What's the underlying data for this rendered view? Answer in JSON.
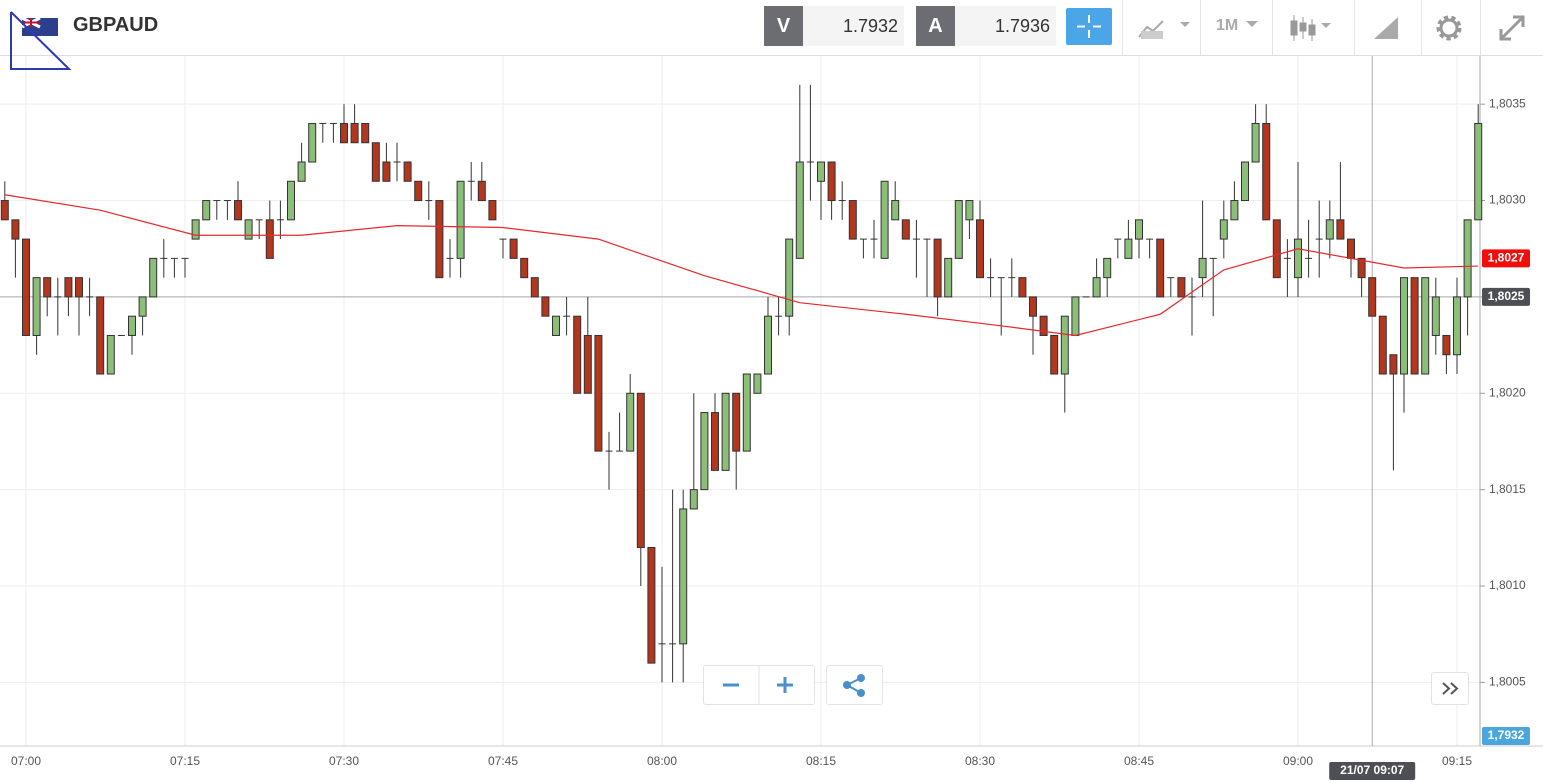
{
  "header": {
    "symbol": "GBPAUD",
    "sell_label": "V",
    "sell_price": "1.7932",
    "buy_label": "A",
    "buy_price": "1.7936",
    "timeframe": "1M"
  },
  "chart_data": {
    "type": "candlestick",
    "up_color": "#8cbd79",
    "down_color": "#b3361f",
    "doji_color": "#555555",
    "grid": true,
    "x": [
      "06:58",
      "06:59",
      "07:00",
      "07:01",
      "07:02",
      "07:03",
      "07:04",
      "07:05",
      "07:06",
      "07:07",
      "07:08",
      "07:09",
      "07:10",
      "07:11",
      "07:12",
      "07:13",
      "07:14",
      "07:15",
      "07:16",
      "07:17",
      "07:18",
      "07:19",
      "07:20",
      "07:21",
      "07:22",
      "07:23",
      "07:24",
      "07:25",
      "07:26",
      "07:27",
      "07:28",
      "07:29",
      "07:30",
      "07:31",
      "07:32",
      "07:33",
      "07:34",
      "07:35",
      "07:36",
      "07:37",
      "07:38",
      "07:39",
      "07:40",
      "07:41",
      "07:42",
      "07:43",
      "07:44",
      "07:45",
      "07:46",
      "07:47",
      "07:48",
      "07:49",
      "07:50",
      "07:51",
      "07:52",
      "07:53",
      "07:54",
      "07:55",
      "07:56",
      "07:57",
      "07:58",
      "07:59",
      "08:00",
      "08:01",
      "08:02",
      "08:03",
      "08:04",
      "08:05",
      "08:06",
      "08:07",
      "08:08",
      "08:09",
      "08:10",
      "08:11",
      "08:12",
      "08:13",
      "08:14",
      "08:15",
      "08:16",
      "08:17",
      "08:18",
      "08:19",
      "08:20",
      "08:21",
      "08:22",
      "08:23",
      "08:24",
      "08:25",
      "08:26",
      "08:27",
      "08:28",
      "08:29",
      "08:30",
      "08:31",
      "08:32",
      "08:33",
      "08:34",
      "08:35",
      "08:36",
      "08:37",
      "08:38",
      "08:39",
      "08:40",
      "08:41",
      "08:42",
      "08:43",
      "08:44",
      "08:45",
      "08:46",
      "08:47",
      "08:48",
      "08:49",
      "08:50",
      "08:51",
      "08:52",
      "08:53",
      "08:54",
      "08:55",
      "08:56",
      "08:57",
      "08:58",
      "08:59",
      "09:00",
      "09:01",
      "09:02",
      "09:03",
      "09:04",
      "09:05",
      "09:06",
      "09:07",
      "09:08",
      "09:09",
      "09:10",
      "09:11",
      "09:12",
      "09:13",
      "09:14",
      "09:15",
      "09:16",
      "09:17"
    ],
    "open": [
      1.803,
      1.8029,
      1.8028,
      1.8023,
      1.8026,
      1.8025,
      1.8026,
      1.8026,
      1.8025,
      1.8025,
      1.8021,
      1.8023,
      1.8023,
      1.8024,
      1.8025,
      1.8027,
      1.8027,
      1.8027,
      1.8028,
      1.8029,
      1.803,
      1.803,
      1.803,
      1.8028,
      1.8029,
      1.8029,
      1.8029,
      1.8029,
      1.8031,
      1.8032,
      1.8034,
      1.8034,
      1.8034,
      1.8034,
      1.8034,
      1.8033,
      1.8032,
      1.8032,
      1.8032,
      1.8031,
      1.803,
      1.803,
      1.8027,
      1.8027,
      1.8031,
      1.8031,
      1.803,
      1.8028,
      1.8028,
      1.8027,
      1.8026,
      1.8025,
      1.8023,
      1.8024,
      1.8024,
      1.8023,
      1.8023,
      1.8017,
      1.8017,
      1.8017,
      1.802,
      1.8012,
      1.8007,
      1.8007,
      1.8007,
      1.8014,
      1.8015,
      1.8019,
      1.8016,
      1.802,
      1.8017,
      1.802,
      1.8021,
      1.8024,
      1.8024,
      1.8027,
      1.8032,
      1.8031,
      1.8032,
      1.803,
      1.803,
      1.8028,
      1.8028,
      1.8027,
      1.8029,
      1.8029,
      1.8028,
      1.8028,
      1.8028,
      1.8025,
      1.8027,
      1.8029,
      1.8029,
      1.8026,
      1.8026,
      1.8026,
      1.8026,
      1.8025,
      1.8024,
      1.8023,
      1.8021,
      1.8023,
      1.8025,
      1.8025,
      1.8026,
      1.8028,
      1.8027,
      1.8028,
      1.8028,
      1.8028,
      1.8026,
      1.8026,
      1.8025,
      1.8026,
      1.8027,
      1.8028,
      1.8029,
      1.803,
      1.8032,
      1.8034,
      1.8029,
      1.8027,
      1.8026,
      1.8027,
      1.8028,
      1.8028,
      1.8029,
      1.8028,
      1.8027,
      1.8026,
      1.8024,
      1.8022,
      1.8021,
      1.8026,
      1.8021,
      1.8023,
      1.8023,
      1.8022,
      1.8025,
      1.8029
    ],
    "high": [
      1.8031,
      1.8029,
      1.8028,
      1.8026,
      1.8026,
      1.8026,
      1.8026,
      1.8026,
      1.8026,
      1.8025,
      1.8023,
      1.8023,
      1.8024,
      1.8025,
      1.8027,
      1.8028,
      1.8027,
      1.8027,
      1.8029,
      1.803,
      1.803,
      1.803,
      1.8031,
      1.8029,
      1.8029,
      1.803,
      1.803,
      1.8031,
      1.8033,
      1.8034,
      1.8034,
      1.8034,
      1.8035,
      1.8035,
      1.8034,
      1.8033,
      1.8033,
      1.8033,
      1.8032,
      1.8031,
      1.8031,
      1.803,
      1.8028,
      1.8031,
      1.8032,
      1.8032,
      1.803,
      1.8028,
      1.8028,
      1.8027,
      1.8026,
      1.8025,
      1.8024,
      1.8025,
      1.8024,
      1.8025,
      1.8023,
      1.8018,
      1.8019,
      1.8021,
      1.802,
      1.8012,
      1.8011,
      1.8015,
      1.8015,
      1.802,
      1.8019,
      1.802,
      1.802,
      1.802,
      1.8021,
      1.8021,
      1.8025,
      1.8025,
      1.8028,
      1.8036,
      1.8036,
      1.8032,
      1.8032,
      1.8031,
      1.803,
      1.8028,
      1.8029,
      1.8031,
      1.8031,
      1.8029,
      1.8029,
      1.8028,
      1.8028,
      1.8027,
      1.803,
      1.803,
      1.803,
      1.8027,
      1.8026,
      1.8027,
      1.8026,
      1.8025,
      1.8024,
      1.8023,
      1.8024,
      1.8025,
      1.8025,
      1.8027,
      1.8027,
      1.8028,
      1.8029,
      1.8029,
      1.8028,
      1.8028,
      1.8026,
      1.8026,
      1.8026,
      1.803,
      1.8027,
      1.803,
      1.8031,
      1.8032,
      1.8035,
      1.8035,
      1.8029,
      1.8028,
      1.8032,
      1.8029,
      1.803,
      1.803,
      1.8032,
      1.8028,
      1.8027,
      1.8026,
      1.8024,
      1.8022,
      1.8026,
      1.8026,
      1.8026,
      1.8026,
      1.8023,
      1.8026,
      1.8029,
      1.8035
    ],
    "low": [
      1.8029,
      1.8026,
      1.8023,
      1.8022,
      1.8024,
      1.8023,
      1.8024,
      1.8023,
      1.8024,
      1.8021,
      1.8021,
      1.8023,
      1.8022,
      1.8023,
      1.8025,
      1.8026,
      1.8026,
      1.8026,
      1.8028,
      1.8029,
      1.8029,
      1.8029,
      1.8029,
      1.8028,
      1.8028,
      1.8027,
      1.8028,
      1.8029,
      1.8031,
      1.8032,
      1.8033,
      1.8033,
      1.8033,
      1.8033,
      1.8033,
      1.8031,
      1.8031,
      1.8031,
      1.8031,
      1.803,
      1.8029,
      1.8026,
      1.8026,
      1.8026,
      1.803,
      1.803,
      1.8029,
      1.8027,
      1.8027,
      1.8026,
      1.8025,
      1.8024,
      1.8023,
      1.8023,
      1.802,
      1.802,
      1.8017,
      1.8015,
      1.8017,
      1.8017,
      1.801,
      1.8006,
      1.8005,
      1.8005,
      1.8005,
      1.8014,
      1.8015,
      1.8016,
      1.8016,
      1.8015,
      1.8017,
      1.802,
      1.8021,
      1.8023,
      1.8023,
      1.8027,
      1.803,
      1.8029,
      1.8029,
      1.8029,
      1.8028,
      1.8027,
      1.8027,
      1.8027,
      1.8029,
      1.8028,
      1.8026,
      1.8025,
      1.8024,
      1.8025,
      1.8027,
      1.8028,
      1.8026,
      1.8025,
      1.8023,
      1.8025,
      1.8025,
      1.8022,
      1.8023,
      1.8021,
      1.8019,
      1.8023,
      1.8025,
      1.8025,
      1.8025,
      1.8027,
      1.8027,
      1.8027,
      1.8027,
      1.8025,
      1.8025,
      1.8025,
      1.8023,
      1.8025,
      1.8024,
      1.8027,
      1.8029,
      1.803,
      1.8032,
      1.8029,
      1.8026,
      1.8025,
      1.8025,
      1.8026,
      1.8026,
      1.8027,
      1.8028,
      1.8026,
      1.8025,
      1.8024,
      1.8021,
      1.8016,
      1.8019,
      1.8021,
      1.8021,
      1.8022,
      1.8021,
      1.8021,
      1.8023,
      1.8029
    ],
    "close": [
      1.8029,
      1.8028,
      1.8023,
      1.8026,
      1.8025,
      1.8025,
      1.8025,
      1.8025,
      1.8025,
      1.8021,
      1.8023,
      1.8023,
      1.8024,
      1.8025,
      1.8027,
      1.8027,
      1.8027,
      1.8027,
      1.8029,
      1.803,
      1.803,
      1.803,
      1.8029,
      1.8029,
      1.8029,
      1.8027,
      1.8029,
      1.8031,
      1.8032,
      1.8034,
      1.8034,
      1.8034,
      1.8033,
      1.8033,
      1.8033,
      1.8031,
      1.8031,
      1.8032,
      1.8031,
      1.803,
      1.803,
      1.8026,
      1.8027,
      1.8031,
      1.8031,
      1.803,
      1.8029,
      1.8028,
      1.8027,
      1.8026,
      1.8025,
      1.8024,
      1.8024,
      1.8024,
      1.802,
      1.802,
      1.8017,
      1.8017,
      1.8017,
      1.802,
      1.8012,
      1.8006,
      1.8007,
      1.8007,
      1.8014,
      1.8015,
      1.8019,
      1.8016,
      1.802,
      1.8017,
      1.8021,
      1.8021,
      1.8024,
      1.8024,
      1.8028,
      1.8032,
      1.8032,
      1.8032,
      1.803,
      1.803,
      1.8028,
      1.8028,
      1.8028,
      1.8031,
      1.803,
      1.8028,
      1.8028,
      1.8028,
      1.8025,
      1.8027,
      1.803,
      1.803,
      1.8026,
      1.8026,
      1.8026,
      1.8026,
      1.8025,
      1.8024,
      1.8023,
      1.8021,
      1.8024,
      1.8025,
      1.8025,
      1.8026,
      1.8027,
      1.8028,
      1.8028,
      1.8029,
      1.8028,
      1.8025,
      1.8026,
      1.8025,
      1.8025,
      1.8027,
      1.8027,
      1.8029,
      1.803,
      1.8032,
      1.8034,
      1.8029,
      1.8026,
      1.8027,
      1.8028,
      1.8027,
      1.8028,
      1.8029,
      1.8028,
      1.8027,
      1.8026,
      1.8024,
      1.8021,
      1.8021,
      1.8026,
      1.8021,
      1.8026,
      1.8025,
      1.8022,
      1.8025,
      1.8029,
      1.8034
    ],
    "moving_average": {
      "color": "#e8282b",
      "x": [
        "06:58",
        "07:07",
        "07:16",
        "07:26",
        "07:35",
        "07:45",
        "07:54",
        "08:04",
        "08:13",
        "08:23",
        "08:32",
        "08:39",
        "08:47",
        "08:53",
        "09:00",
        "09:10",
        "09:17"
      ],
      "values": [
        1.80303,
        1.80295,
        1.80282,
        1.80282,
        1.80287,
        1.80286,
        1.8028,
        1.80261,
        1.80247,
        1.80241,
        1.80235,
        1.8023,
        1.80241,
        1.80264,
        1.80275,
        1.80265,
        1.80266
      ]
    },
    "ylim": [
      1.80017,
      1.80375
    ],
    "yticks": [
      {
        "value": 1.8005,
        "label": "1,8005"
      },
      {
        "value": 1.801,
        "label": "1,8010"
      },
      {
        "value": 1.8015,
        "label": "1,8015"
      },
      {
        "value": 1.802,
        "label": "1,8020"
      },
      {
        "value": 1.8025,
        "label": "1,8025"
      },
      {
        "value": 1.803,
        "label": "1,8030"
      },
      {
        "value": 1.8035,
        "label": "1,8035"
      }
    ],
    "xticks": [
      "07:00",
      "07:15",
      "07:30",
      "07:45",
      "08:00",
      "08:15",
      "08:30",
      "08:45",
      "09:00",
      "09:15"
    ],
    "price_markers": [
      {
        "value": 1.8027,
        "label": "1,8027",
        "color": "#f20d0d"
      },
      {
        "value": 1.8025,
        "label": "1,8025",
        "color": "#4d4f55"
      },
      {
        "value": 1.7932,
        "label": "1,7932",
        "color": "#4aa6dc"
      }
    ],
    "crosshair": {
      "x": "09:07",
      "value": 1.8025,
      "label": "21/07 09:07"
    }
  }
}
